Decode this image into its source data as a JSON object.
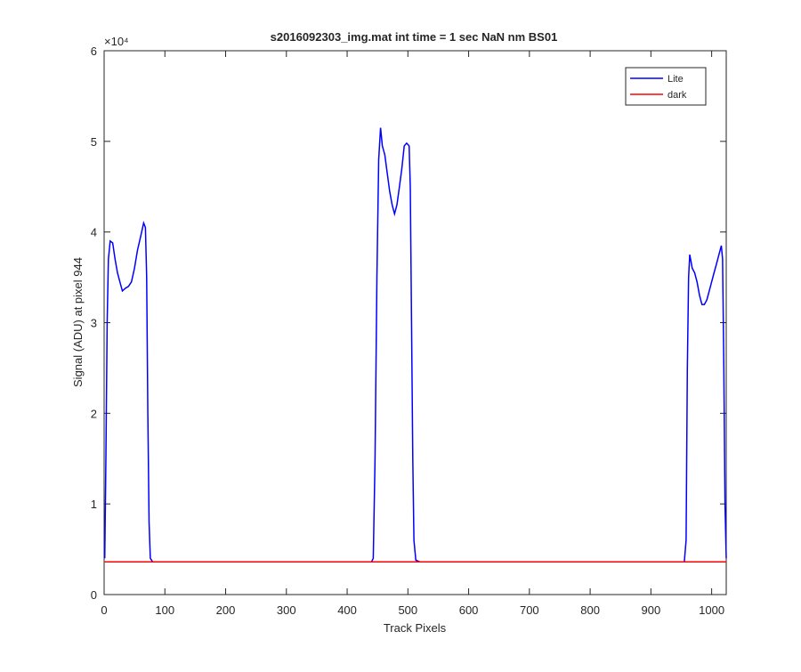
{
  "chart_data": {
    "type": "line",
    "title": "s2016092303_img.mat int time = 1 sec  NaN nm BS01",
    "xlabel": "Track Pixels",
    "ylabel": "Signal (ADU) at pixel 944",
    "y_exponent": "×10⁴",
    "xlim": [
      0,
      1024
    ],
    "ylim": [
      0,
      60000
    ],
    "xticks": [
      0,
      100,
      200,
      300,
      400,
      500,
      600,
      700,
      800,
      900,
      1000
    ],
    "yticks": [
      0,
      {
        "value": 10000,
        "label": "1"
      },
      {
        "value": 20000,
        "label": "2"
      },
      {
        "value": 30000,
        "label": "3"
      },
      {
        "value": 40000,
        "label": "4"
      },
      {
        "value": 50000,
        "label": "5"
      },
      {
        "value": 60000,
        "label": "6"
      }
    ],
    "legend": "northeast",
    "series": [
      {
        "name": "Lite",
        "color": "#0000ff",
        "x": [
          1,
          3,
          5,
          7,
          10,
          14,
          18,
          22,
          26,
          30,
          35,
          40,
          45,
          50,
          55,
          60,
          65,
          68,
          70,
          72,
          74,
          76,
          80,
          440,
          443,
          446,
          449,
          452,
          455,
          458,
          462,
          466,
          470,
          474,
          478,
          482,
          486,
          490,
          494,
          498,
          502,
          504,
          506,
          508,
          510,
          513,
          520,
          955,
          958,
          960,
          962,
          964,
          968,
          972,
          976,
          980,
          984,
          988,
          992,
          996,
          1000,
          1004,
          1008,
          1012,
          1016,
          1018,
          1020,
          1022,
          1024
        ],
        "values": [
          4000,
          15000,
          30000,
          37000,
          39000,
          38800,
          37000,
          35500,
          34500,
          33500,
          33800,
          34000,
          34500,
          36000,
          38000,
          39500,
          41000,
          40500,
          35000,
          20000,
          8000,
          4000,
          3600,
          3600,
          4000,
          15000,
          35000,
          48000,
          51500,
          49500,
          48500,
          46500,
          44500,
          43000,
          42000,
          43000,
          45000,
          47000,
          49500,
          49800,
          49500,
          45000,
          30000,
          15000,
          6000,
          3800,
          3600,
          3600,
          6000,
          25000,
          35000,
          37500,
          36000,
          35500,
          34500,
          33000,
          32000,
          32000,
          32500,
          33500,
          34500,
          35500,
          36500,
          37500,
          38500,
          37000,
          25000,
          10000,
          4000
        ]
      },
      {
        "name": "dark",
        "color": "#ff0000",
        "x": [
          1,
          1024
        ],
        "values": [
          3600,
          3600
        ]
      }
    ]
  }
}
